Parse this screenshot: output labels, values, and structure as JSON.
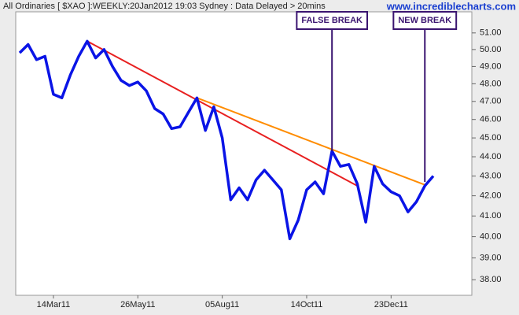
{
  "chart_data": {
    "type": "line",
    "title": "All Ordinaries [ $XAO ]:WEEKLY:20Jan2012 19:03 Sydney : Data Delayed > 20mins",
    "source": "www.incrediblecharts.com",
    "categories": [
      null,
      null,
      null,
      null,
      "14Mar11",
      null,
      null,
      null,
      null,
      null,
      null,
      null,
      null,
      null,
      "26May11",
      null,
      null,
      null,
      null,
      null,
      null,
      null,
      null,
      null,
      "05Aug11",
      null,
      null,
      null,
      null,
      null,
      null,
      null,
      null,
      null,
      "14Oct11",
      null,
      null,
      null,
      null,
      null,
      null,
      null,
      null,
      null,
      "23Dec11",
      null,
      null,
      null,
      null,
      null
    ],
    "series": [
      {
        "color": "#0a14e6",
        "values": [
          49.8,
          50.3,
          49.4,
          49.6,
          47.4,
          47.2,
          48.5,
          49.6,
          50.5,
          49.5,
          50.0,
          49.0,
          48.2,
          47.9,
          48.1,
          47.6,
          46.6,
          46.3,
          45.5,
          45.6,
          46.4,
          47.2,
          45.4,
          46.7,
          45.0,
          41.8,
          42.4,
          41.8,
          42.8,
          43.3,
          42.8,
          42.3,
          39.9,
          40.8,
          42.3,
          42.7,
          42.1,
          44.3,
          43.5,
          43.6,
          42.6,
          40.7,
          43.5,
          42.6,
          42.2,
          42.0,
          41.2,
          41.7,
          42.5,
          43.0
        ]
      }
    ],
    "trendlines": [
      {
        "color": "#e82020",
        "x": [
          8,
          40
        ],
        "values": [
          50.5,
          42.5
        ]
      },
      {
        "color": "#ff8c00",
        "x": [
          21,
          48
        ],
        "values": [
          47.2,
          42.55
        ]
      }
    ],
    "annotations": [
      {
        "text": "FALSE BREAK",
        "x": 37,
        "value": 44.3
      },
      {
        "text": "NEW BREAK",
        "x": 48,
        "value": 42.7
      }
    ],
    "log_scale": true,
    "ylim": [
      37.3,
      52.3
    ],
    "yticks": [
      {
        "value": 38,
        "label": "38.00"
      },
      {
        "value": 39,
        "label": "39.00"
      },
      {
        "value": 40,
        "label": "40.00"
      },
      {
        "value": 41,
        "label": "41.00"
      },
      {
        "value": 42,
        "label": "42.00"
      },
      {
        "value": 43,
        "label": "43.00"
      },
      {
        "value": 44,
        "label": "44.00"
      },
      {
        "value": 45,
        "label": "45.00"
      },
      {
        "value": 46,
        "label": "46.00"
      },
      {
        "value": 47,
        "label": "47.00"
      },
      {
        "value": 48,
        "label": "48.00"
      },
      {
        "value": 49,
        "label": "49.00"
      },
      {
        "value": 50,
        "label": "50.00"
      },
      {
        "value": 51,
        "label": "51.00"
      }
    ]
  }
}
